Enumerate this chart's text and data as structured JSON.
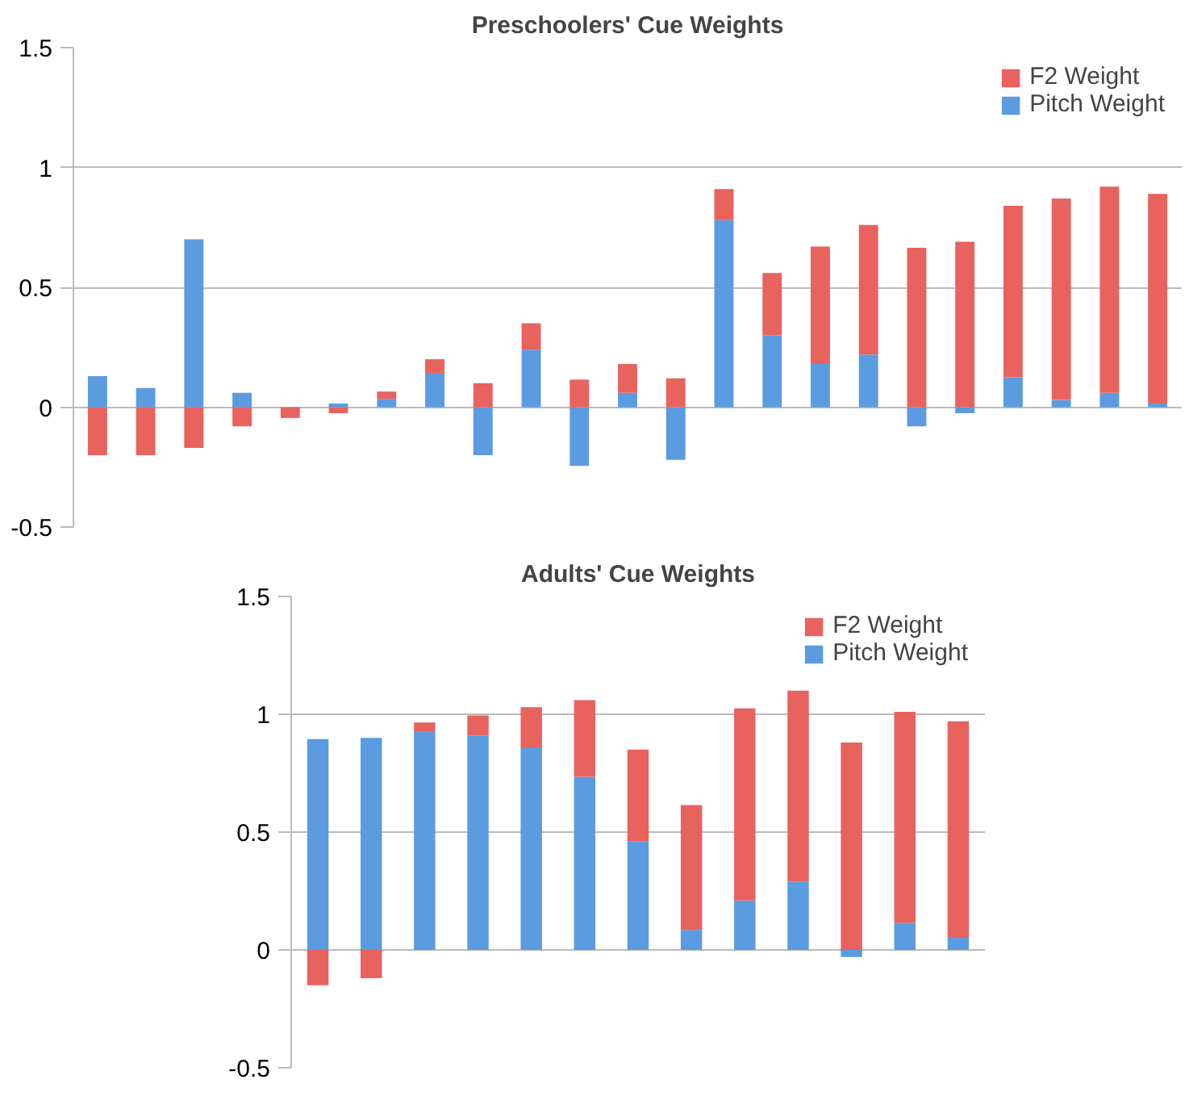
{
  "chart_data": [
    {
      "type": "bar",
      "title": "Preschoolers' Cue Weights",
      "stacked": true,
      "categories": [
        null,
        null,
        null,
        null,
        null,
        null,
        null,
        null,
        null,
        null,
        null,
        null,
        null,
        null,
        null,
        null,
        null,
        null,
        null,
        null,
        null,
        null,
        null
      ],
      "series": [
        {
          "name": "Pitch Weight",
          "color": "#5b9be0",
          "values": [
            0.13,
            0.08,
            0.7,
            0.06,
            0,
            0.015,
            0.035,
            0.14,
            -0.2,
            0.24,
            -0.245,
            0.06,
            -0.22,
            0.78,
            0.3,
            0.18,
            0.22,
            -0.08,
            -0.025,
            0.125,
            0.03,
            0.06,
            0.015
          ]
        },
        {
          "name": "F2 Weight",
          "color": "#e8625e",
          "values": [
            -0.2,
            -0.2,
            -0.17,
            -0.08,
            -0.045,
            -0.025,
            0.03,
            0.06,
            0.1,
            0.11,
            0.115,
            0.12,
            0.12,
            0.13,
            0.26,
            0.49,
            0.54,
            0.665,
            0.69,
            0.715,
            0.84,
            0.86,
            0.875
          ]
        }
      ],
      "ylim": [
        -0.5,
        1.5
      ],
      "yticks": [
        -0.5,
        0,
        0.5,
        1,
        1.5
      ],
      "grid": "y",
      "legend": "top right",
      "tick_labels": "y"
    },
    {
      "type": "bar",
      "title": "Adults' Cue Weights",
      "stacked": true,
      "categories": [
        null,
        null,
        null,
        null,
        null,
        null,
        null,
        null,
        null,
        null,
        null,
        null,
        null
      ],
      "series": [
        {
          "name": "Pitch Weight",
          "color": "#5b9be0",
          "values": [
            0.895,
            0.9,
            0.925,
            0.91,
            0.86,
            0.735,
            0.46,
            0.085,
            0.21,
            0.29,
            -0.03,
            0.115,
            0.055
          ]
        },
        {
          "name": "F2 Weight",
          "color": "#e8625e",
          "values": [
            -0.15,
            -0.12,
            0.04,
            0.085,
            0.17,
            0.325,
            0.39,
            0.53,
            0.815,
            0.81,
            0.88,
            0.895,
            0.915
          ]
        }
      ],
      "ylim": [
        -0.5,
        1.5
      ],
      "yticks": [
        -0.5,
        0,
        0.5,
        1,
        1.5
      ],
      "grid": "y",
      "legend": "top right",
      "tick_labels": "y"
    }
  ]
}
